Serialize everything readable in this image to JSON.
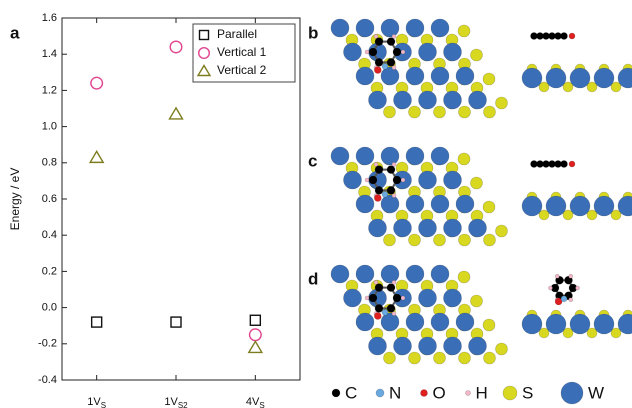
{
  "chart_data": {
    "type": "scatter",
    "panel_label": "a",
    "y_label": "Energy / eV",
    "categories": [
      "1V",
      "1V",
      "4V"
    ],
    "category_subscripts": [
      "S",
      "S2",
      "S"
    ],
    "ylim": [
      -0.4,
      1.6
    ],
    "yticks": [
      -0.4,
      -0.2,
      {
        "value": 0,
        "label": "0.0"
      },
      0.2,
      0.4,
      0.6,
      0.8,
      {
        "value": 1,
        "label": "1.0"
      },
      1.2,
      1.4,
      1.6
    ],
    "legend": "upper right",
    "series": [
      {
        "name": "Parallel",
        "color": "#111111",
        "marker": "square",
        "values": [
          -0.08,
          -0.08,
          -0.07
        ]
      },
      {
        "name": "Vertical 1",
        "color": "#e0458f",
        "marker": "circle",
        "values": [
          1.24,
          1.44,
          -0.15
        ]
      },
      {
        "name": "Vertical 2",
        "color": "#7d7d1f",
        "marker": "triangle",
        "values": [
          0.83,
          1.07,
          -0.22
        ]
      }
    ]
  },
  "structure_panels": [
    "b",
    "c",
    "d"
  ],
  "atom_legend": [
    {
      "label": "C",
      "color": "#000000"
    },
    {
      "label": "N",
      "color": "#6aa8e0"
    },
    {
      "label": "O",
      "color": "#e02020"
    },
    {
      "label": "H",
      "color": "#f2b8c8"
    },
    {
      "label": "S",
      "color": "#d8d820"
    },
    {
      "label": "W",
      "color": "#3a6fb8"
    }
  ]
}
